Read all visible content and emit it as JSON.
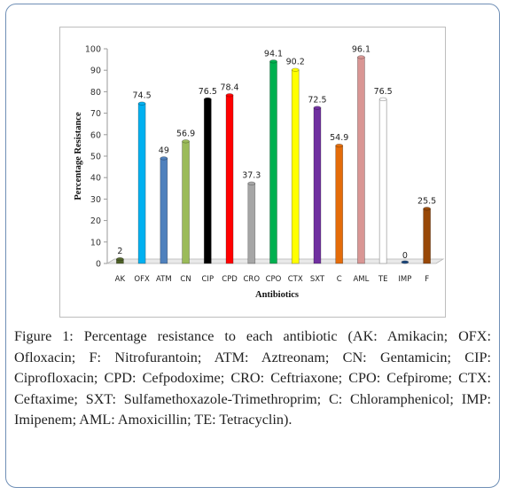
{
  "chart_data": {
    "type": "bar",
    "categories": [
      "AK",
      "OFX",
      "ATM",
      "CN",
      "CIP",
      "CPD",
      "CRO",
      "CPO",
      "CTX",
      "SXT",
      "C",
      "AML",
      "TE",
      "IMP",
      "F"
    ],
    "values": [
      2,
      74.5,
      49,
      56.9,
      76.5,
      78.4,
      37.3,
      94.1,
      90.2,
      72.5,
      54.9,
      96.1,
      76.5,
      0,
      25.5
    ],
    "data_labels": [
      "2",
      "74.5",
      "49",
      "56.9",
      "76.5",
      "78.4",
      "37.3",
      "94.1",
      "90.2",
      "72.5",
      "54.9",
      "96.1",
      "76.5",
      "0",
      "25.5"
    ],
    "colors": [
      "#4f6228",
      "#00b0f0",
      "#4f81bd",
      "#9bbb59",
      "#000000",
      "#ff0000",
      "#a6a6a6",
      "#00b050",
      "#ffff00",
      "#7030a0",
      "#e46c0a",
      "#d99694",
      "#ffffff",
      "#1f497d",
      "#984807"
    ],
    "xlabel": "Antibiotics",
    "ylabel": "Percentage Resistance",
    "ylim": [
      0,
      100
    ],
    "yticks": [
      "0",
      "10",
      "20",
      "30",
      "40",
      "50",
      "60",
      "70",
      "80",
      "90",
      "100"
    ],
    "grid": false,
    "style": "3d-cylinder"
  },
  "caption": {
    "label": "Figure 1:",
    "text": " Percentage resistance to each antibiotic (AK: Amikacin; OFX: Ofloxacin; F: Nitrofurantoin; ATM: Aztreonam; CN: Gentamicin; CIP: Ciprofloxacin; CPD: Cefpodoxime; CRO: Ceftriaxone; CPO: Cefpirome; CTX: Ceftaxime; SXT: Sulfamethoxazole-Trimethroprim; C: Chloramphenicol; IMP: Imipenem; AML: Amoxicillin; TE: Tetracyclin)."
  }
}
